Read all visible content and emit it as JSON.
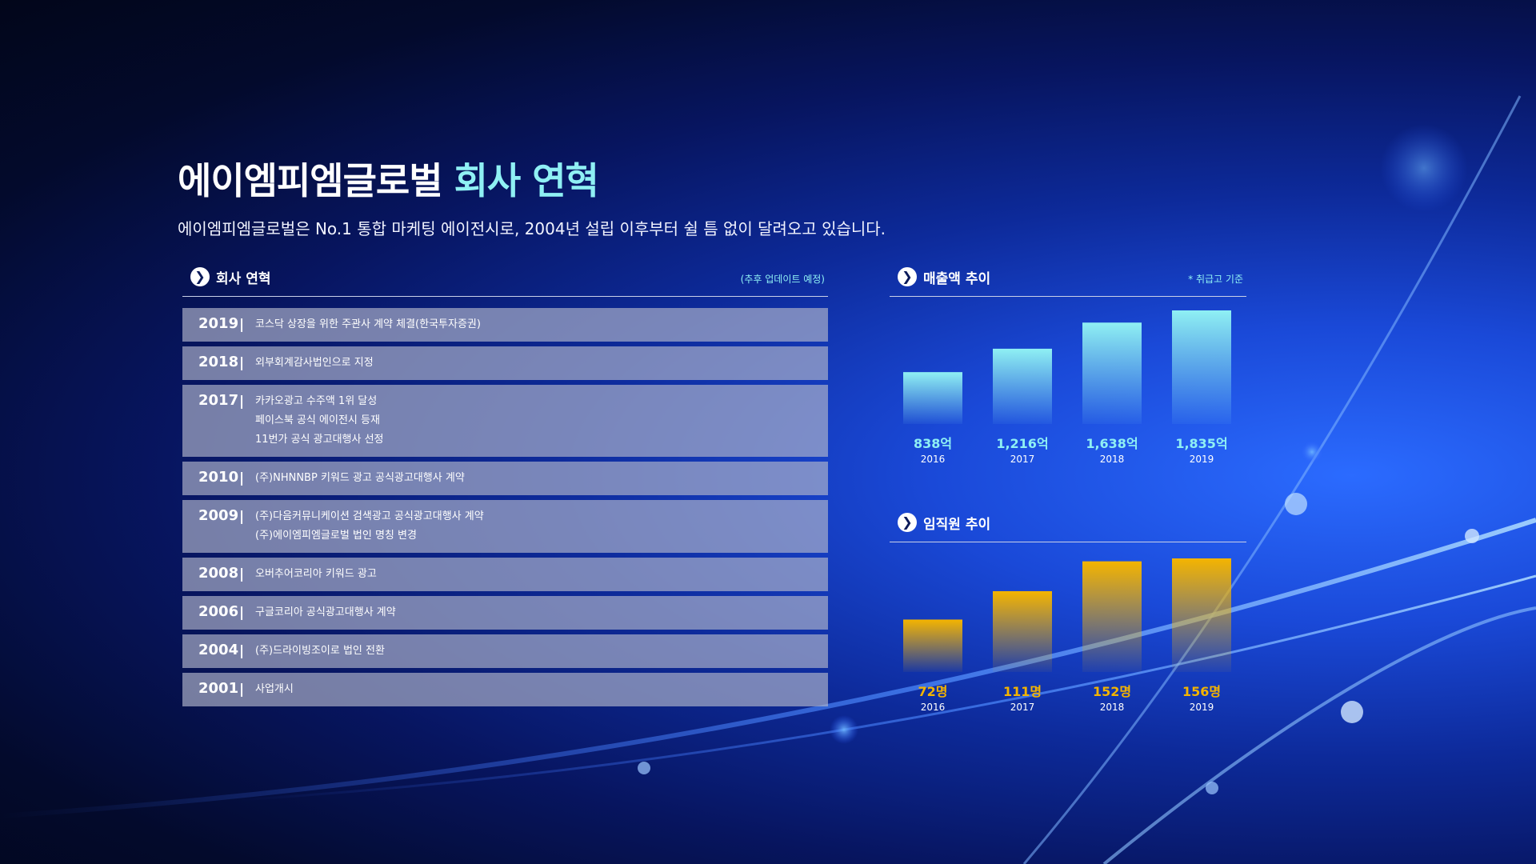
{
  "header": {
    "title_main": "에이엠피엠글로벌",
    "title_accent": "회사 연혁",
    "subtitle": "에이엠피엠글로벌은 No.1 통합 마케팅 에이전시로, 2004년 설립 이후부터 쉴 틈 없이 달려오고 있습니다."
  },
  "history": {
    "heading": "회사 연혁",
    "note": "(추후 업데이트 예정)",
    "rows": [
      {
        "year": "2019",
        "items": [
          "코스닥 상장을 위한 주관사 계약 체결(한국투자증권)"
        ]
      },
      {
        "year": "2018",
        "items": [
          "외부회계감사법인으로 지정"
        ]
      },
      {
        "year": "2017",
        "items": [
          "카카오광고 수주액 1위 달성",
          "페이스북 공식 에이전시 등재",
          "11번가 공식 광고대행사 선정"
        ]
      },
      {
        "year": "2010",
        "items": [
          "(주)NHNNBP 키워드 광고 공식광고대행사 계약"
        ]
      },
      {
        "year": "2009",
        "items": [
          "(주)다음커뮤니케이션 검색광고 공식광고대행사 계약",
          "(주)에이엠피엠글로벌 법인 명칭 변경"
        ]
      },
      {
        "year": "2008",
        "items": [
          "오버추어코리아 키워드 광고"
        ]
      },
      {
        "year": "2006",
        "items": [
          "구글코리아 공식광고대행사 계약"
        ]
      },
      {
        "year": "2004",
        "items": [
          "(주)드라이빙조이로 법인 전환"
        ]
      },
      {
        "year": "2001",
        "items": [
          "사업개시"
        ]
      }
    ]
  },
  "sales_section": {
    "heading": "매출액 추이",
    "note": "* 취급고 기준"
  },
  "employee_section": {
    "heading": "임직원 추이"
  },
  "chart_data": [
    {
      "type": "bar",
      "title": "매출액 추이",
      "categories": [
        "2016",
        "2017",
        "2018",
        "2019"
      ],
      "values": [
        838,
        1216,
        1638,
        1835
      ],
      "value_labels": [
        "838억",
        "1,216억",
        "1,638억",
        "1,835억"
      ],
      "unit": "억",
      "color": "#8ff0f4"
    },
    {
      "type": "bar",
      "title": "임직원 추이",
      "categories": [
        "2016",
        "2017",
        "2018",
        "2019"
      ],
      "values": [
        72,
        111,
        152,
        156
      ],
      "value_labels": [
        "72명",
        "111명",
        "152명",
        "156명"
      ],
      "unit": "명",
      "color": "#f4b400"
    }
  ]
}
